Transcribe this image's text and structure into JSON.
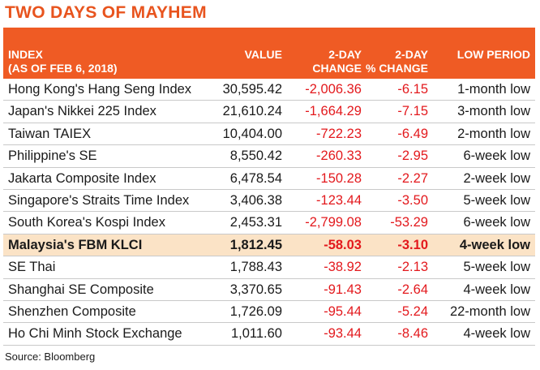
{
  "title": "TWO DAYS OF MAYHEM",
  "headers": {
    "index_line1": "INDEX",
    "index_line2": "(AS OF FEB 6, 2018)",
    "value": "VALUE",
    "change_line1": "2-DAY",
    "change_line2": "CHANGE",
    "pct_line1": "2-DAY",
    "pct_line2": "% CHANGE",
    "low_period": "LOW PERIOD"
  },
  "rows": [
    {
      "name": "Hong Kong's Hang Seng Index",
      "value": "30,595.42",
      "change": "-2,006.36",
      "pct": "-6.15",
      "low": "1-month low"
    },
    {
      "name": "Japan's Nikkei 225 Index",
      "value": "21,610.24",
      "change": "-1,664.29",
      "pct": "-7.15",
      "low": "3-month low"
    },
    {
      "name": "Taiwan TAIEX",
      "value": "10,404.00",
      "change": "-722.23",
      "pct": "-6.49",
      "low": "2-month low"
    },
    {
      "name": "Philippine's SE",
      "value": "8,550.42",
      "change": "-260.33",
      "pct": "-2.95",
      "low": "6-week low"
    },
    {
      "name": "Jakarta Composite Index",
      "value": "6,478.54",
      "change": "-150.28",
      "pct": "-2.27",
      "low": "2-week low"
    },
    {
      "name": "Singapore's Straits Time Index",
      "value": "3,406.38",
      "change": "-123.44",
      "pct": "-3.50",
      "low": "5-week low"
    },
    {
      "name": "South Korea's Kospi Index",
      "value": "2,453.31",
      "change": "-2,799.08",
      "pct": "-53.29",
      "low": "6-week low"
    },
    {
      "name": "Malaysia's FBM KLCI",
      "value": "1,812.45",
      "change": "-58.03",
      "pct": "-3.10",
      "low": "4-week low"
    },
    {
      "name": "SE Thai",
      "value": "1,788.43",
      "change": "-38.92",
      "pct": "-2.13",
      "low": "5-week low"
    },
    {
      "name": "Shanghai SE Composite",
      "value": "3,370.65",
      "change": "-91.43",
      "pct": "-2.64",
      "low": "4-week low"
    },
    {
      "name": "Shenzhen Composite",
      "value": "1,726.09",
      "change": "-95.44",
      "pct": "-5.24",
      "low": "22-month low"
    },
    {
      "name": "Ho Chi Minh Stock Exchange",
      "value": "1,011.60",
      "change": "-93.44",
      "pct": "-8.46",
      "low": "4-week low"
    }
  ],
  "source": "Source: Bloomberg",
  "colors": {
    "accent": "#ef5b24",
    "title": "#e8541e",
    "negative": "#e3191d",
    "highlight": "#fbe3c6"
  }
}
